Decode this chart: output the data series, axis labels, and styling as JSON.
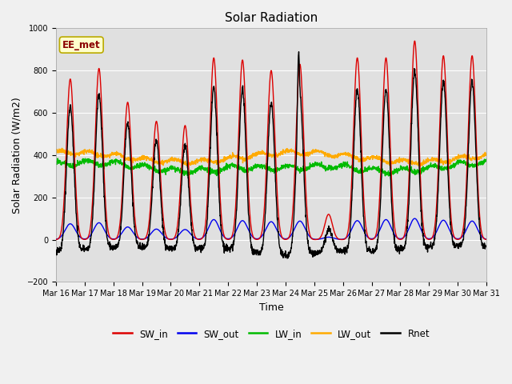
{
  "title": "Solar Radiation",
  "ylabel": "Solar Radiation (W/m2)",
  "xlabel": "Time",
  "annotation": "EE_met",
  "ylim": [
    -200,
    1000
  ],
  "yticks": [
    -200,
    0,
    200,
    400,
    600,
    800,
    1000
  ],
  "x_tick_labels": [
    "Mar 16",
    "Mar 17",
    "Mar 18",
    "Mar 19",
    "Mar 20",
    "Mar 21",
    "Mar 22",
    "Mar 23",
    "Mar 24",
    "Mar 25",
    "Mar 26",
    "Mar 27",
    "Mar 28",
    "Mar 29",
    "Mar 30",
    "Mar 31"
  ],
  "series_colors": {
    "SW_in": "#dd0000",
    "SW_out": "#0000ee",
    "LW_in": "#00bb00",
    "LW_out": "#ffaa00",
    "Rnet": "#000000"
  },
  "SW_in_peaks": [
    760,
    810,
    650,
    560,
    540,
    860,
    850,
    800,
    830,
    120,
    860,
    860,
    940,
    870,
    870
  ],
  "SW_out_peaks": [
    75,
    80,
    60,
    50,
    48,
    95,
    90,
    85,
    88,
    12,
    90,
    95,
    100,
    92,
    88
  ],
  "night_rnet": -80,
  "LW_in_base": 345,
  "LW_out_base": 390,
  "plot_bg_color": "#e0e0e0",
  "fig_bg_color": "#f0f0f0",
  "grid_color": "#ffffff",
  "title_fontsize": 11,
  "tick_fontsize": 7,
  "label_fontsize": 9
}
